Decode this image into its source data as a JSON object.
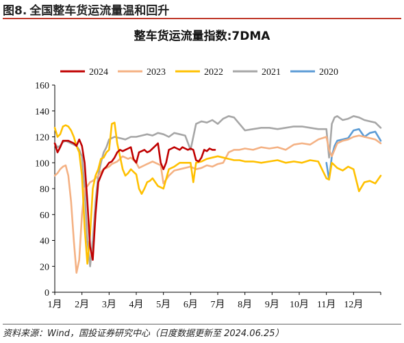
{
  "figure": {
    "number": "图8.",
    "title": "全国整车货运流量温和回升"
  },
  "source": "资料来源：Wind，国投证券研究中心（日度数据更新至 2024.06.25）",
  "chart_data": {
    "type": "line",
    "title": "整车货运流量指数:7DMA",
    "xlabel": "",
    "ylabel": "",
    "ylim": [
      0,
      160
    ],
    "yticks": [
      0,
      20,
      40,
      60,
      80,
      100,
      120,
      140,
      160
    ],
    "xlim": [
      0,
      12
    ],
    "month_labels": [
      "1月",
      "2月",
      "3月",
      "4月",
      "5月",
      "6月",
      "7月",
      "8月",
      "9月",
      "10月",
      "11月",
      "12月"
    ],
    "grid": false,
    "legend": "top",
    "x_unit": "month (0 = start of 1月, 12 = end of 12月)",
    "series": [
      {
        "name": "2024",
        "color": "#c00000",
        "x": [
          0,
          0.1,
          0.2,
          0.3,
          0.4,
          0.5,
          0.6,
          0.7,
          0.8,
          0.9,
          1.0,
          1.1,
          1.2,
          1.3,
          1.4,
          1.5,
          1.6,
          1.7,
          1.8,
          1.9,
          2.0,
          2.1,
          2.2,
          2.3,
          2.4,
          2.5,
          2.6,
          2.7,
          2.8,
          2.9,
          3.0,
          3.1,
          3.2,
          3.3,
          3.4,
          3.5,
          3.6,
          3.7,
          3.8,
          3.9,
          4.0,
          4.1,
          4.2,
          4.3,
          4.4,
          4.5,
          4.6,
          4.7,
          4.8,
          4.9,
          5.0,
          5.1,
          5.2,
          5.3,
          5.4,
          5.5,
          5.6,
          5.7,
          5.8,
          5.9
        ],
        "values": [
          115,
          108,
          112,
          117,
          117,
          117,
          116,
          115,
          113,
          118,
          113,
          100,
          70,
          35,
          25,
          60,
          85,
          90,
          95,
          97,
          100,
          101,
          104,
          108,
          110,
          109,
          110,
          111,
          112,
          103,
          100,
          108,
          109,
          110,
          108,
          109,
          111,
          113,
          115,
          100,
          95,
          100,
          110,
          111,
          112,
          111,
          110,
          112,
          111,
          110,
          111,
          110,
          102,
          101,
          104,
          110,
          109,
          111,
          110,
          110
        ]
      },
      {
        "name": "2023",
        "color": "#f4b183",
        "x": [
          0,
          0.1,
          0.2,
          0.3,
          0.4,
          0.5,
          0.6,
          0.7,
          0.8,
          0.9,
          1.0,
          1.1,
          1.2,
          1.3,
          1.4,
          1.5,
          1.6,
          1.7,
          1.8,
          1.9,
          2.0,
          2.1,
          2.2,
          2.3,
          2.4,
          2.5,
          2.6,
          2.7,
          2.8,
          2.9,
          3.0,
          3.1,
          3.2,
          3.3,
          3.4,
          3.5,
          3.6,
          3.7,
          3.8,
          3.9,
          4.0,
          4.2,
          4.4,
          4.6,
          4.8,
          5.0,
          5.2,
          5.4,
          5.6,
          5.8,
          6.0,
          6.2,
          6.4,
          6.6,
          6.8,
          7.0,
          7.3,
          7.6,
          7.9,
          8.2,
          8.5,
          8.8,
          9.1,
          9.4,
          9.7,
          10.0,
          10.1,
          10.2,
          10.3,
          10.4,
          10.6,
          10.8,
          11.0,
          11.2,
          11.4,
          11.6,
          11.8,
          12.0
        ],
        "values": [
          90,
          92,
          95,
          97,
          98,
          90,
          70,
          40,
          15,
          25,
          60,
          80,
          82,
          85,
          86,
          88,
          90,
          93,
          95,
          96,
          97,
          99,
          100,
          101,
          103,
          105,
          104,
          103,
          104,
          102,
          100,
          96,
          97,
          98,
          99,
          100,
          101,
          100,
          99,
          98,
          84,
          90,
          94,
          95,
          96,
          97,
          95,
          96,
          98,
          97,
          99,
          100,
          108,
          110,
          110,
          111,
          110,
          112,
          111,
          112,
          110,
          114,
          115,
          114,
          118,
          120,
          110,
          105,
          110,
          115,
          117,
          118,
          120,
          121,
          120,
          119,
          118,
          115
        ]
      },
      {
        "name": "2022",
        "color": "#ffc000",
        "x": [
          0,
          0.1,
          0.2,
          0.3,
          0.4,
          0.5,
          0.6,
          0.7,
          0.8,
          0.9,
          1.0,
          1.1,
          1.2,
          1.3,
          1.4,
          1.5,
          1.6,
          1.7,
          1.8,
          1.9,
          2.0,
          2.1,
          2.2,
          2.3,
          2.4,
          2.5,
          2.6,
          2.7,
          2.8,
          2.9,
          3.0,
          3.1,
          3.2,
          3.3,
          3.4,
          3.5,
          3.6,
          3.7,
          3.8,
          3.9,
          4.0,
          4.2,
          4.4,
          4.6,
          4.8,
          5.0,
          5.1,
          5.2,
          5.4,
          5.6,
          5.8,
          6.0,
          6.2,
          6.4,
          6.6,
          6.8,
          7.0,
          7.3,
          7.6,
          7.9,
          8.2,
          8.5,
          8.8,
          9.1,
          9.4,
          9.7,
          10.0,
          10.1,
          10.2,
          10.3,
          10.4,
          10.6,
          10.8,
          11.0,
          11.2,
          11.4,
          11.6,
          11.8,
          12.0
        ],
        "values": [
          127,
          120,
          122,
          128,
          129,
          128,
          125,
          120,
          113,
          108,
          90,
          50,
          22,
          45,
          80,
          90,
          95,
          103,
          104,
          108,
          110,
          130,
          131,
          115,
          105,
          95,
          90,
          92,
          95,
          93,
          91,
          80,
          76,
          80,
          85,
          86,
          88,
          85,
          82,
          81,
          80,
          95,
          97,
          100,
          100,
          100,
          85,
          100,
          101,
          103,
          104,
          105,
          104,
          103,
          102,
          102,
          101,
          101,
          100,
          101,
          102,
          100,
          101,
          100,
          102,
          101,
          88,
          87,
          100,
          98,
          96,
          94,
          97,
          95,
          78,
          85,
          86,
          84,
          90
        ]
      },
      {
        "name": "2021",
        "color": "#a6a6a6",
        "x": [
          0,
          0.1,
          0.2,
          0.3,
          0.4,
          0.5,
          0.6,
          0.7,
          0.8,
          0.9,
          1.0,
          1.1,
          1.2,
          1.3,
          1.4,
          1.5,
          1.6,
          1.7,
          1.8,
          1.9,
          2.0,
          2.2,
          2.4,
          2.6,
          2.8,
          3.0,
          3.2,
          3.4,
          3.6,
          3.8,
          4.0,
          4.2,
          4.4,
          4.6,
          4.8,
          5.0,
          5.2,
          5.4,
          5.6,
          5.8,
          6.0,
          6.2,
          6.4,
          6.6,
          6.8,
          7.0,
          7.3,
          7.6,
          7.9,
          8.2,
          8.5,
          8.8,
          9.1,
          9.4,
          9.7,
          10.0,
          10.1,
          10.2,
          10.3,
          10.4,
          10.6,
          10.8,
          11.0,
          11.2,
          11.4,
          11.6,
          11.8,
          12.0
        ],
        "values": [
          115,
          112,
          113,
          116,
          117,
          116,
          115,
          114,
          113,
          110,
          105,
          80,
          40,
          20,
          40,
          70,
          90,
          100,
          108,
          112,
          118,
          120,
          119,
          118,
          120,
          120,
          121,
          122,
          121,
          123,
          122,
          120,
          123,
          122,
          121,
          110,
          130,
          132,
          131,
          133,
          130,
          134,
          136,
          135,
          130,
          125,
          126,
          127,
          127,
          126,
          127,
          128,
          128,
          127,
          126,
          126,
          104,
          130,
          135,
          136,
          133,
          134,
          136,
          135,
          133,
          132,
          131,
          127
        ]
      },
      {
        "name": "2020",
        "color": "#5b9bd5",
        "x": [
          10.0,
          10.1,
          10.2,
          10.3,
          10.4,
          10.6,
          10.8,
          11.0,
          11.2,
          11.4,
          11.6,
          11.8,
          12.0
        ],
        "values": [
          100,
          87,
          105,
          113,
          117,
          118,
          119,
          125,
          126,
          120,
          123,
          124,
          117
        ]
      }
    ]
  }
}
